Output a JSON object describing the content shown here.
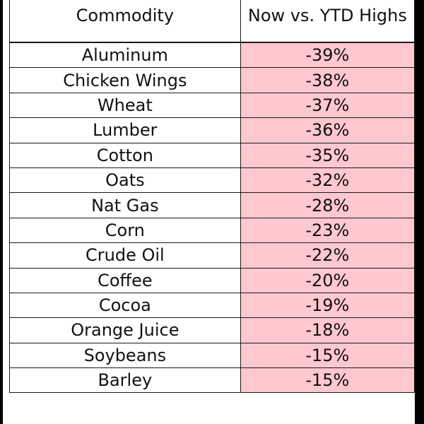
{
  "chart_data": {
    "type": "table",
    "colors": {
      "negative_fill": "#ffc7ce"
    },
    "columns": [
      "Commodity",
      "Now vs. YTD Highs"
    ],
    "rows": [
      {
        "commodity": "Aluminum",
        "change": "-39%",
        "value": -39
      },
      {
        "commodity": "Chicken Wings",
        "change": "-38%",
        "value": -38
      },
      {
        "commodity": "Wheat",
        "change": "-37%",
        "value": -37
      },
      {
        "commodity": "Lumber",
        "change": "-36%",
        "value": -36
      },
      {
        "commodity": "Cotton",
        "change": "-35%",
        "value": -35
      },
      {
        "commodity": "Oats",
        "change": "-32%",
        "value": -32
      },
      {
        "commodity": "Nat Gas",
        "change": "-28%",
        "value": -28
      },
      {
        "commodity": "Corn",
        "change": "-23%",
        "value": -23
      },
      {
        "commodity": "Crude Oil",
        "change": "-22%",
        "value": -22
      },
      {
        "commodity": "Coffee",
        "change": "-20%",
        "value": -20
      },
      {
        "commodity": "Cocoa",
        "change": "-19%",
        "value": -19
      },
      {
        "commodity": "Orange Juice",
        "change": "-18%",
        "value": -18
      },
      {
        "commodity": "Soybeans",
        "change": "-15%",
        "value": -15
      },
      {
        "commodity": "Barley",
        "change": "-15%",
        "value": -15
      }
    ]
  }
}
